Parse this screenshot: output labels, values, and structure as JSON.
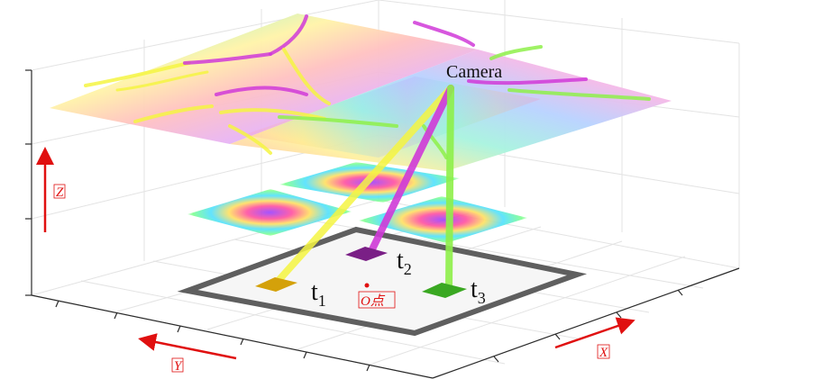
{
  "labels": {
    "camera": "Camera",
    "t1_main": "t",
    "t1_sub": "1",
    "t2_main": "t",
    "t2_sub": "2",
    "t3_main": "t",
    "t3_sub": "3",
    "origin": "O点",
    "axis_x": "X",
    "axis_y": "Y",
    "axis_z": "Z"
  },
  "colors": {
    "ray_t1": "#f5f542",
    "ray_t2": "#d03ad8",
    "ray_t3": "#8ef04a",
    "marker_t1": "#d4a10a",
    "marker_t2": "#7a1f86",
    "marker_t3": "#3aa822",
    "frame": "#5f5f5f",
    "axis_arrow": "#e01010"
  }
}
